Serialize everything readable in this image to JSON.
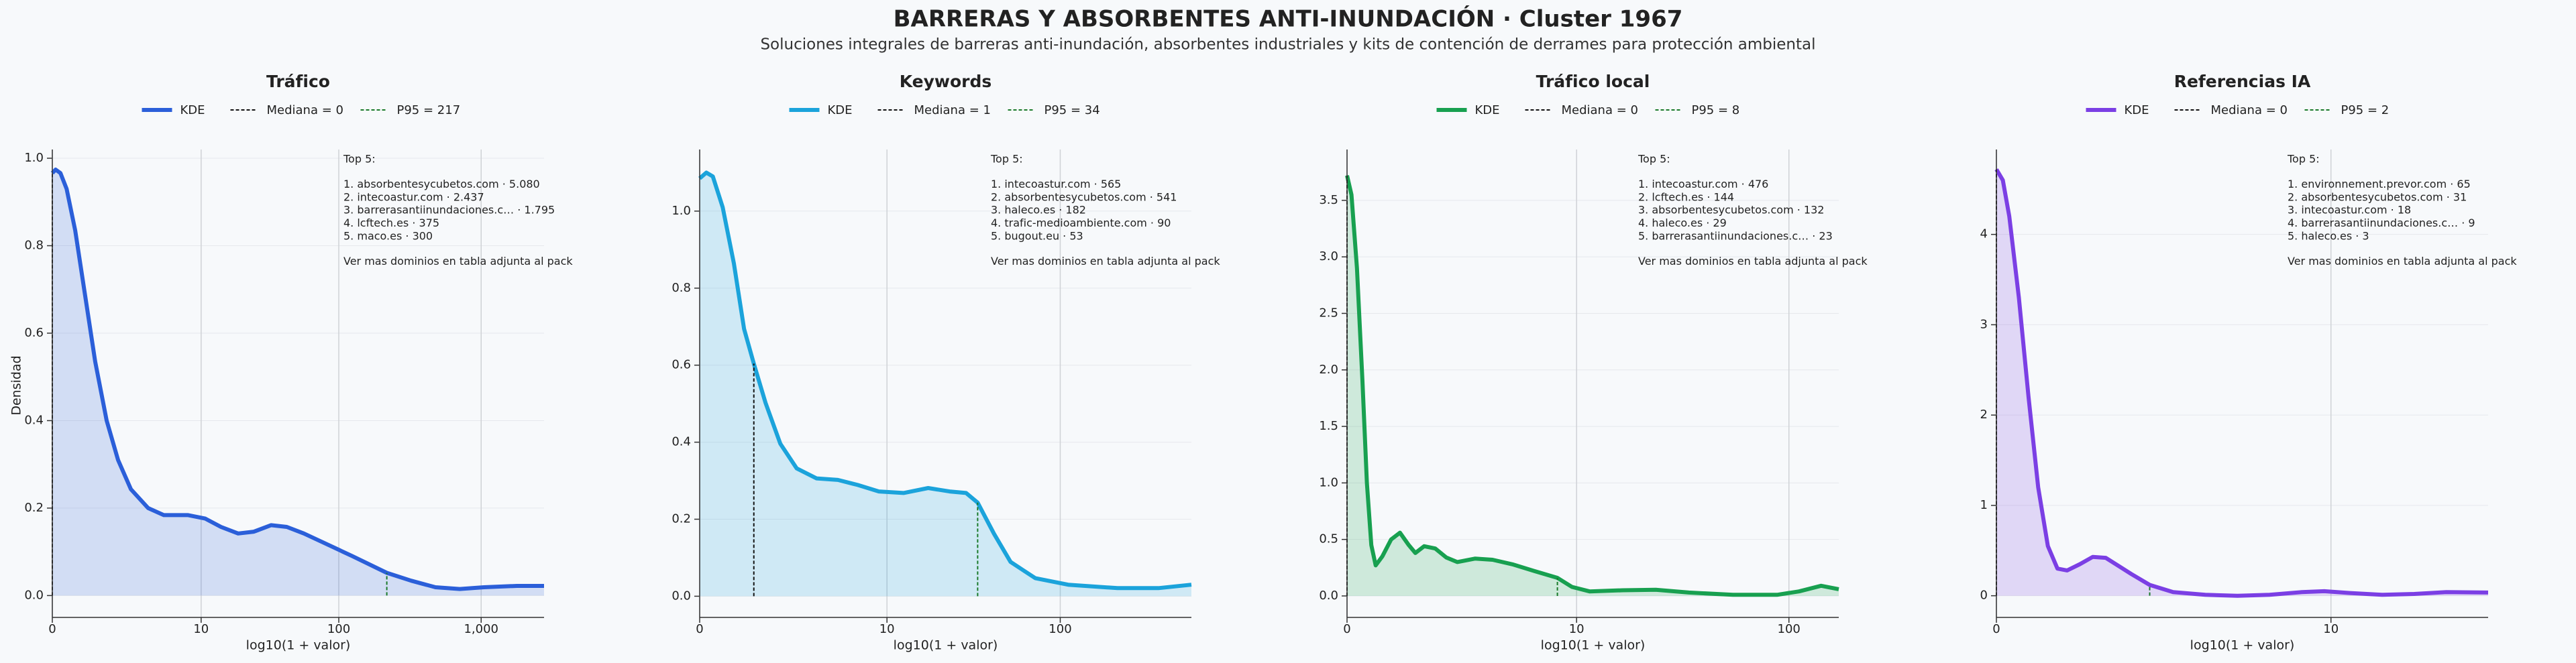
{
  "title": "BARRERAS Y ABSORBENTES ANTI‑INUNDACIÓN · Cluster 1967",
  "subtitle": "Soluciones integrales de barreras anti‑inundación, absorbentes industriales y kits de contención de derrames para protección ambiental",
  "chart_data": [
    {
      "type": "area",
      "title": "Tráfico",
      "xlabel": "log10(1 + valor)",
      "ylabel": "Densidad",
      "grid": true,
      "x": [
        0,
        0.023,
        0.057,
        0.1,
        0.16,
        0.23,
        0.3,
        0.38,
        0.46,
        0.55,
        0.67,
        0.78,
        0.95,
        1.07,
        1.18,
        1.3,
        1.41,
        1.53,
        1.64,
        1.76,
        1.93,
        2.1,
        2.34,
        2.51,
        2.68,
        2.85,
        3.02,
        3.25,
        3.44
      ],
      "series": [
        {
          "name": "KDE",
          "color": "#2b5fd9",
          "values": [
            0.966,
            0.974,
            0.966,
            0.93,
            0.835,
            0.685,
            0.535,
            0.4,
            0.31,
            0.243,
            0.2,
            0.184,
            0.184,
            0.176,
            0.157,
            0.142,
            0.146,
            0.161,
            0.157,
            0.142,
            0.116,
            0.09,
            0.052,
            0.034,
            0.019,
            0.015,
            0.019,
            0.022,
            0.022
          ]
        }
      ],
      "median_label": "Mediana = 0",
      "median_x": 0,
      "p95_label": "P95 = 217",
      "p95_x": 2.34,
      "xlim": [
        0,
        3.44
      ],
      "xticks": [
        0,
        {
          "value": 1.041,
          "label": "10"
        },
        {
          "value": 2.004,
          "label": "100"
        },
        {
          "value": 3.0,
          "label": "1,000"
        }
      ],
      "ylim": [
        -0.05,
        1.02
      ],
      "yticks": [
        {
          "value": 0,
          "label": "0.0"
        },
        0.2,
        0.4,
        0.6,
        0.8,
        {
          "value": 1,
          "label": "1.0"
        }
      ],
      "annotation": [
        "Top 5:",
        "1. absorbentesycubetos.com · 5.080",
        "2. intecoastur.com · 2.437",
        "3. barrerasantiinundaciones.c… · 1.795",
        "4. lcftech.es · 375",
        "5. maco.es · 300",
        "Ver mas dominios en tabla adjunta al pack"
      ]
    },
    {
      "type": "area",
      "title": "Keywords",
      "xlabel": "log10(1 + valor)",
      "grid": true,
      "x": [
        0,
        0.037,
        0.073,
        0.128,
        0.19,
        0.247,
        0.301,
        0.366,
        0.448,
        0.539,
        0.649,
        0.768,
        0.878,
        0.996,
        1.133,
        1.27,
        1.389,
        1.481,
        1.545,
        1.636,
        1.728,
        1.865,
        2.048,
        2.322,
        2.55,
        2.733
      ],
      "series": [
        {
          "name": "KDE",
          "color": "#1ba3db",
          "values": [
            1.085,
            1.1,
            1.09,
            1.01,
            0.864,
            0.694,
            0.604,
            0.502,
            0.396,
            0.332,
            0.306,
            0.302,
            0.289,
            0.272,
            0.268,
            0.281,
            0.272,
            0.268,
            0.243,
            0.162,
            0.089,
            0.047,
            0.03,
            0.021,
            0.021,
            0.03
          ]
        }
      ],
      "median_label": "Mediana = 1",
      "median_x": 0.301,
      "p95_label": "P95 = 34",
      "p95_x": 1.545,
      "xlim": [
        0,
        2.733
      ],
      "xticks": [
        0,
        {
          "value": 1.041,
          "label": "10"
        },
        {
          "value": 2.004,
          "label": "100"
        }
      ],
      "ylim": [
        -0.055,
        1.16
      ],
      "yticks": [
        {
          "value": 0,
          "label": "0.0"
        },
        0.2,
        0.4,
        0.6,
        0.8,
        {
          "value": 1,
          "label": "1.0"
        }
      ],
      "annotation": [
        "Top 5:",
        "1. intecoastur.com · 565",
        "2. absorbentesycubetos.com · 541",
        "3. haleco.es · 182",
        "4. trafic-medioambiente.com · 90",
        "5. bugout.eu · 53",
        "Ver mas dominios en tabla adjunta al pack"
      ]
    },
    {
      "type": "area",
      "title": "Tráfico local",
      "xlabel": "log10(1 + valor)",
      "grid": true,
      "x": [
        0,
        0.02,
        0.045,
        0.07,
        0.09,
        0.11,
        0.13,
        0.16,
        0.2,
        0.24,
        0.28,
        0.31,
        0.35,
        0.4,
        0.45,
        0.5,
        0.58,
        0.66,
        0.75,
        0.85,
        0.954,
        1.02,
        1.1,
        1.25,
        1.4,
        1.55,
        1.75,
        1.95,
        2.05,
        2.15,
        2.23
      ],
      "series": [
        {
          "name": "KDE",
          "color": "#18a050",
          "values": [
            3.72,
            3.55,
            2.9,
            1.9,
            1.0,
            0.45,
            0.27,
            0.35,
            0.5,
            0.56,
            0.45,
            0.38,
            0.44,
            0.42,
            0.34,
            0.3,
            0.33,
            0.32,
            0.28,
            0.22,
            0.16,
            0.08,
            0.04,
            0.05,
            0.055,
            0.03,
            0.01,
            0.01,
            0.04,
            0.09,
            0.06
          ]
        }
      ],
      "median_label": "Mediana = 0",
      "median_x": 0,
      "p95_label": "P95 = 8",
      "p95_x": 0.954,
      "xlim": [
        0,
        2.23
      ],
      "xticks": [
        0,
        {
          "value": 1.041,
          "label": "10"
        },
        {
          "value": 2.004,
          "label": "100"
        }
      ],
      "ylim": [
        -0.19,
        3.95
      ],
      "yticks": [
        {
          "value": 0,
          "label": "0.0"
        },
        0.5,
        {
          "value": 1,
          "label": "1.0"
        },
        1.5,
        {
          "value": 2,
          "label": "2.0"
        },
        2.5,
        {
          "value": 3,
          "label": "3.0"
        },
        3.5
      ],
      "annotation": [
        "Top 5:",
        "1. intecoastur.com · 476",
        "2. lcftech.es · 144",
        "3. absorbentesycubetos.com · 132",
        "4. haleco.es · 29",
        "5. barrerasantiinundaciones.c… · 23",
        "Ver mas dominios en tabla adjunta al pack"
      ]
    },
    {
      "type": "area",
      "title": "Referencias IA",
      "xlabel": "log10(1 + valor)",
      "grid": true,
      "x": [
        0,
        0.02,
        0.04,
        0.07,
        0.1,
        0.13,
        0.16,
        0.19,
        0.22,
        0.26,
        0.3,
        0.34,
        0.38,
        0.42,
        0.477,
        0.55,
        0.65,
        0.75,
        0.85,
        0.95,
        1.02,
        1.1,
        1.2,
        1.3,
        1.4,
        1.53
      ],
      "series": [
        {
          "name": "KDE",
          "color": "#7b3fe4",
          "values": [
            4.72,
            4.6,
            4.2,
            3.3,
            2.2,
            1.2,
            0.55,
            0.3,
            0.28,
            0.35,
            0.43,
            0.42,
            0.33,
            0.24,
            0.12,
            0.04,
            0.01,
            0.0,
            0.01,
            0.04,
            0.05,
            0.03,
            0.01,
            0.02,
            0.04,
            0.035
          ]
        }
      ],
      "median_label": "Mediana = 0",
      "median_x": 0,
      "p95_label": "P95 = 2",
      "p95_x": 0.477,
      "xlim": [
        0,
        1.53
      ],
      "xticks": [
        0,
        {
          "value": 1.041,
          "label": "10"
        }
      ],
      "ylim": [
        -0.24,
        4.94
      ],
      "yticks": [
        0,
        1,
        2,
        3,
        4
      ],
      "annotation": [
        "Top 5:",
        "1. environnement.prevor.com · 65",
        "2. absorbentesycubetos.com · 31",
        "3. intecoastur.com · 18",
        "4. barrerasantiinundaciones.c… · 9",
        "5. haleco.es · 3",
        "Ver mas dominios en tabla adjunta al pack"
      ]
    }
  ]
}
